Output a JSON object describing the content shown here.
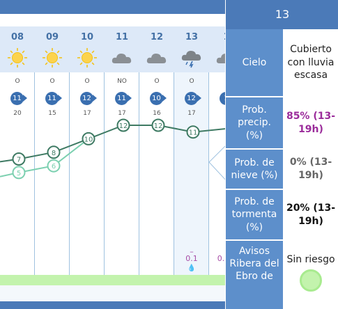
{
  "colors": {
    "header_blue": "#4b7ab8",
    "label_blue": "#5d8fcb",
    "column_head": "#dde9f8",
    "grid_line": "#9fc2e0",
    "temp_max": "#3e7a63",
    "temp_min": "#7cd0b0",
    "precip_purple": "#a64ca6",
    "risk_green": "#c3f3ad"
  },
  "days": [
    {
      "day": "08",
      "sky": "sun-icon",
      "dir": "O",
      "wind": "11",
      "gust": "20"
    },
    {
      "day": "09",
      "sky": "sun-icon",
      "dir": "O",
      "wind": "11",
      "gust": "15"
    },
    {
      "day": "10",
      "sky": "sun-icon",
      "dir": "O",
      "wind": "12",
      "gust": "17"
    },
    {
      "day": "11",
      "sky": "cloud-icon",
      "dir": "NO",
      "wind": "11",
      "gust": "17"
    },
    {
      "day": "12",
      "sky": "cloud-icon",
      "dir": "O",
      "wind": "10",
      "gust": "16"
    },
    {
      "day": "13",
      "sky": "cloud-rain-storm-icon",
      "dir": "O",
      "wind": "12",
      "gust": "17"
    },
    {
      "day": "1",
      "sky": "cloud-icon",
      "dir": "",
      "wind": "1",
      "gust": ""
    }
  ],
  "temps_max": [
    "7",
    "8",
    "10",
    "12",
    "12",
    "11",
    ""
  ],
  "temps_min": [
    "5",
    "6"
  ],
  "precip": {
    "col5_value": "0.1",
    "col6_value": "0.",
    "dash": "–",
    "drops": "💧💧"
  },
  "popup": {
    "title": "13",
    "rows": [
      {
        "label": "Cielo",
        "value": "Cubierto con lluvia escasa",
        "style": "plain"
      },
      {
        "label": "Prob. precip. (%)",
        "value": "85% (13-19h)",
        "style": "purple"
      },
      {
        "label": "Prob. de nieve (%)",
        "value": "0% (13-19h)",
        "style": "gray"
      },
      {
        "label": "Prob. de tormenta (%)",
        "value": "20% (13-19h)",
        "style": "black"
      },
      {
        "label": "Avisos Ribera del Ebro de",
        "value": "Sin riesgo",
        "style": "plain"
      }
    ]
  }
}
